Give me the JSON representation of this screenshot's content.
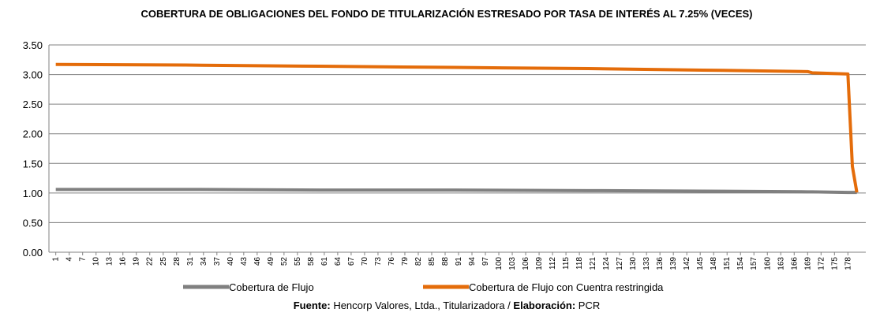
{
  "chart_data": {
    "type": "line",
    "title": "COBERTURA DE OBLIGACIONES DEL FONDO DE TITULARIZACIÓN ESTRESADO POR TASA DE INTERÉS AL 7.25% (VECES)",
    "x": [
      1,
      30,
      60,
      90,
      120,
      150,
      169,
      170,
      178,
      179,
      180
    ],
    "series": [
      {
        "name": "Cobertura de Flujo",
        "color": "#808080",
        "values": [
          1.06,
          1.06,
          1.05,
          1.05,
          1.04,
          1.03,
          1.02,
          1.02,
          1.01,
          1.01,
          1.01
        ]
      },
      {
        "name": "Cobertura de Flujo con Cuentra restringida",
        "color": "#e46c0a",
        "values": [
          3.17,
          3.16,
          3.14,
          3.12,
          3.1,
          3.07,
          3.05,
          3.03,
          3.01,
          1.45,
          1.01
        ]
      }
    ],
    "xlim": [
      0,
      182
    ],
    "xticks": [
      1,
      4,
      7,
      10,
      13,
      16,
      19,
      22,
      25,
      28,
      31,
      34,
      37,
      40,
      43,
      46,
      49,
      52,
      55,
      58,
      61,
      64,
      67,
      70,
      73,
      76,
      79,
      82,
      85,
      88,
      91,
      94,
      97,
      100,
      103,
      106,
      109,
      112,
      115,
      118,
      121,
      124,
      127,
      130,
      133,
      136,
      139,
      142,
      145,
      148,
      151,
      154,
      157,
      160,
      163,
      166,
      169,
      172,
      175,
      178
    ],
    "ylim": [
      0,
      3.5
    ],
    "yticks": [
      {
        "value": 0,
        "label": "0.00"
      },
      {
        "value": 0.5,
        "label": "0.50"
      },
      {
        "value": 1,
        "label": "1.00"
      },
      {
        "value": 1.5,
        "label": "1.50"
      },
      {
        "value": 2,
        "label": "2.00"
      },
      {
        "value": 2.5,
        "label": "2.50"
      },
      {
        "value": 3,
        "label": "3.00"
      },
      {
        "value": 3.5,
        "label": "3.50"
      }
    ],
    "grid": true,
    "source": {
      "label1": "Fuente:",
      "text1": "Hencorp Valores, Ltda., Titularizadora / ",
      "label2": "Elaboración:",
      "text2": "PCR"
    }
  }
}
